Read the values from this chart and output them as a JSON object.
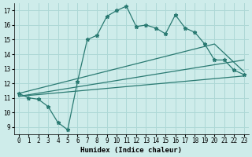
{
  "title": "",
  "xlabel": "Humidex (Indice chaleur)",
  "bg_color": "#ceecea",
  "grid_color": "#add8d6",
  "line_color": "#2a7a72",
  "xlim": [
    -0.5,
    23.5
  ],
  "ylim": [
    8.5,
    17.5
  ],
  "yticks": [
    9,
    10,
    11,
    12,
    13,
    14,
    15,
    16,
    17
  ],
  "xticks": [
    0,
    1,
    2,
    3,
    4,
    5,
    6,
    7,
    8,
    9,
    10,
    11,
    12,
    13,
    14,
    15,
    16,
    17,
    18,
    19,
    20,
    21,
    22,
    23
  ],
  "jagged_x": [
    0,
    1,
    2,
    3,
    4,
    5,
    6,
    7,
    8,
    9,
    10,
    11,
    12,
    13,
    14,
    15,
    16,
    17,
    18,
    19,
    20,
    21,
    22,
    23
  ],
  "jagged_y": [
    11.3,
    11.0,
    10.9,
    10.4,
    9.3,
    8.8,
    12.1,
    15.0,
    15.3,
    16.6,
    17.0,
    17.3,
    15.9,
    16.0,
    15.8,
    15.4,
    16.7,
    15.8,
    15.5,
    14.7,
    13.6,
    13.6,
    12.9,
    12.6
  ],
  "trend1_x": [
    0,
    23
  ],
  "trend1_y": [
    11.1,
    12.5
  ],
  "trend2_x": [
    0,
    23
  ],
  "trend2_y": [
    11.1,
    13.6
  ],
  "trend3_x": [
    0,
    20,
    23
  ],
  "trend3_y": [
    11.3,
    14.7,
    12.8
  ]
}
